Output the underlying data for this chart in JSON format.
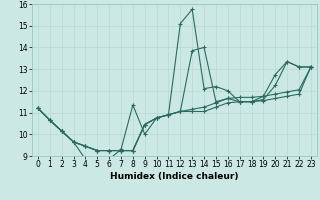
{
  "title": "",
  "xlabel": "Humidex (Indice chaleur)",
  "xlim": [
    -0.5,
    23.5
  ],
  "ylim": [
    9,
    16
  ],
  "yticks": [
    9,
    10,
    11,
    12,
    13,
    14,
    15,
    16
  ],
  "xticks": [
    0,
    1,
    2,
    3,
    4,
    5,
    6,
    7,
    8,
    9,
    10,
    11,
    12,
    13,
    14,
    15,
    16,
    17,
    18,
    19,
    20,
    21,
    22,
    23
  ],
  "bg_color": "#cce8e4",
  "line_color": "#2a6b60",
  "lines": [
    {
      "x": [
        0,
        1,
        2,
        3,
        4,
        5,
        6,
        7,
        8,
        9,
        10,
        11,
        12,
        13,
        14,
        15,
        16,
        17,
        18,
        19,
        20,
        21,
        22,
        23
      ],
      "y": [
        11.2,
        10.65,
        10.15,
        9.65,
        8.85,
        8.85,
        8.85,
        9.3,
        11.35,
        10.0,
        10.75,
        10.9,
        15.1,
        15.75,
        12.1,
        12.2,
        12.0,
        11.5,
        11.5,
        11.75,
        12.75,
        13.35,
        13.1,
        13.1
      ]
    },
    {
      "x": [
        0,
        1,
        2,
        3,
        4,
        5,
        6,
        7,
        8,
        9,
        10,
        11,
        12,
        13,
        14,
        15,
        16,
        17,
        18,
        19,
        20,
        21,
        22,
        23
      ],
      "y": [
        11.2,
        10.65,
        10.15,
        9.65,
        9.45,
        9.25,
        9.25,
        9.25,
        9.25,
        10.45,
        10.75,
        10.9,
        11.05,
        13.85,
        14.0,
        11.5,
        11.65,
        11.5,
        11.5,
        11.6,
        12.25,
        13.35,
        13.1,
        13.1
      ]
    },
    {
      "x": [
        0,
        1,
        2,
        3,
        4,
        5,
        6,
        7,
        8,
        9,
        10,
        11,
        12,
        13,
        14,
        15,
        16,
        17,
        18,
        19,
        20,
        21,
        22,
        23
      ],
      "y": [
        11.2,
        10.65,
        10.15,
        9.65,
        9.45,
        9.25,
        9.25,
        9.25,
        9.25,
        10.45,
        10.75,
        10.9,
        11.05,
        11.05,
        11.05,
        11.25,
        11.45,
        11.5,
        11.5,
        11.55,
        11.65,
        11.75,
        11.85,
        13.1
      ]
    },
    {
      "x": [
        0,
        1,
        2,
        3,
        4,
        5,
        6,
        7,
        8,
        9,
        10,
        11,
        12,
        13,
        14,
        15,
        16,
        17,
        18,
        19,
        20,
        21,
        22,
        23
      ],
      "y": [
        11.2,
        10.65,
        10.15,
        9.65,
        9.45,
        9.25,
        9.25,
        9.25,
        9.25,
        10.45,
        10.75,
        10.9,
        11.05,
        11.15,
        11.25,
        11.45,
        11.65,
        11.7,
        11.7,
        11.75,
        11.85,
        11.95,
        12.05,
        13.1
      ]
    }
  ]
}
